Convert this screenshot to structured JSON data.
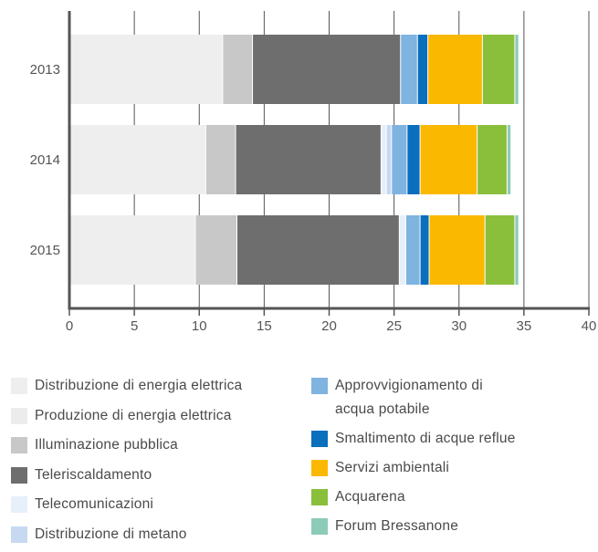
{
  "chart_data": {
    "type": "bar",
    "orientation": "horizontal",
    "stacked": true,
    "categories": [
      "2013",
      "2014",
      "2015"
    ],
    "xlim": [
      0,
      40
    ],
    "x_ticks": [
      "0",
      "5",
      "10",
      "15",
      "20",
      "25",
      "30",
      "35",
      "40"
    ],
    "grid": "vertical",
    "legend_position": "bottom",
    "series": [
      {
        "name": "Distribuzione di energia elettrica",
        "color": "#eeeeee",
        "values": [
          11.8,
          10.5,
          9.7
        ]
      },
      {
        "name": "Produzione di energia elettrica",
        "color": "#ececec",
        "values": [
          0,
          0,
          0
        ]
      },
      {
        "name": "Illuminazione pubblica",
        "color": "#c8c8c8",
        "values": [
          2.3,
          2.3,
          3.2
        ]
      },
      {
        "name": "Teleriscaldamento",
        "color": "#6e6e6e",
        "values": [
          11.4,
          11.2,
          12.5
        ]
      },
      {
        "name": "Telecomunicazioni",
        "color": "#e6effa",
        "values": [
          0,
          0.4,
          0.5
        ]
      },
      {
        "name": "Distribuzione di metano",
        "color": "#c6d9f1",
        "values": [
          0,
          0.4,
          0
        ]
      },
      {
        "name": "Approvvigionamento di acqua potabile",
        "color": "#7fb3e0",
        "values": [
          1.3,
          1.2,
          1.1
        ]
      },
      {
        "name": "Smaltimento di acque reflue",
        "color": "#0a6fbd",
        "values": [
          0.8,
          1.0,
          0.7
        ]
      },
      {
        "name": "Servizi ambientali",
        "color": "#fbb800",
        "values": [
          4.2,
          4.4,
          4.3
        ]
      },
      {
        "name": "Acquarena",
        "color": "#8abf3b",
        "values": [
          2.5,
          2.3,
          2.3
        ]
      },
      {
        "name": "Forum Bressanone",
        "color": "#8ccbb8",
        "values": [
          0.3,
          0.3,
          0.3
        ]
      }
    ]
  },
  "legend": {
    "left": [
      0,
      1,
      2,
      3,
      4,
      5
    ],
    "right": [
      6,
      7,
      8,
      9,
      10
    ],
    "right_label_lines": {
      "6": [
        "Approvvigionamento di",
        "acqua potabile"
      ]
    }
  }
}
